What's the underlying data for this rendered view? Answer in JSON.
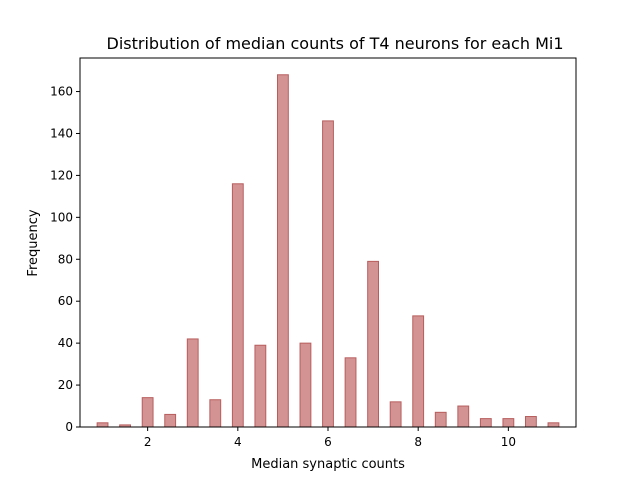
{
  "chart_data": {
    "type": "bar",
    "title": "Distribution of median counts of T4 neurons for each Mi1",
    "xlabel": "Median synaptic counts",
    "ylabel": "Frequency",
    "xlim": [
      0.5,
      11.5
    ],
    "ylim": [
      0,
      176
    ],
    "xticks": [
      2,
      4,
      6,
      8,
      10
    ],
    "yticks": [
      0,
      20,
      40,
      60,
      80,
      100,
      120,
      140,
      160
    ],
    "bar_width": 0.24,
    "x": [
      1.0,
      1.5,
      2.0,
      2.5,
      3.0,
      3.5,
      4.0,
      4.5,
      5.0,
      5.5,
      6.0,
      6.5,
      7.0,
      7.5,
      8.0,
      8.5,
      9.0,
      9.5,
      10.0,
      10.5,
      11.0
    ],
    "values": [
      2,
      1,
      14,
      6,
      42,
      13,
      116,
      39,
      168,
      40,
      146,
      33,
      79,
      12,
      53,
      7,
      10,
      4,
      4,
      5,
      2
    ],
    "bar_color": "#c97b7b",
    "grid": false,
    "legend": "none"
  }
}
